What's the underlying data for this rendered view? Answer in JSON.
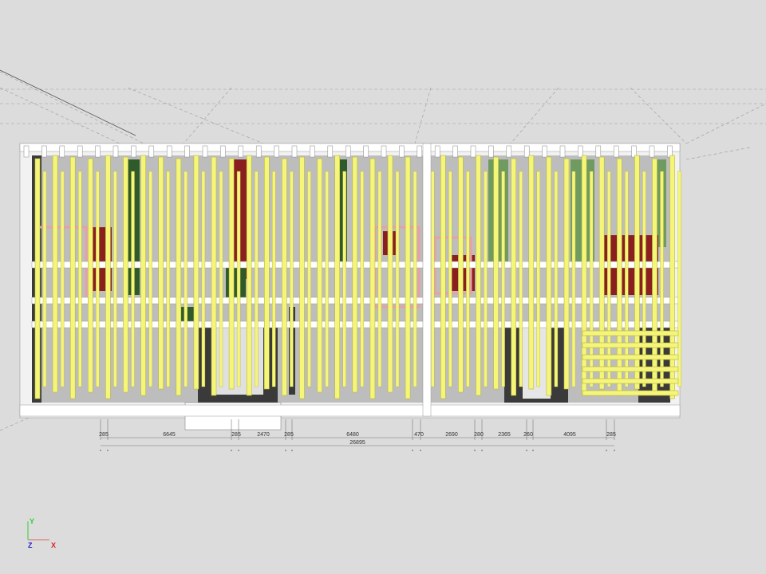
{
  "viewport": {
    "background": "#dcdcdc",
    "colors": {
      "stud": "#f5f57a",
      "stud_edge": "#b8b840",
      "beam": "#ffffff",
      "dark_wall": "#3a3a3a",
      "green_panel": "#2f5a2a",
      "light_green_panel": "#6f9a60",
      "red_panel": "#8a1f1f",
      "pink_frame": "#e6a0a8"
    }
  },
  "dimensions": {
    "segments": [
      "285",
      "6645",
      "285",
      "2470",
      "285",
      "6480",
      "470",
      "2690",
      "280",
      "2365",
      "260",
      "4095",
      "285"
    ],
    "total": "26895"
  },
  "axis_indicator": {
    "y_label": "Y",
    "z_label": "Z",
    "x_label": "X",
    "y_color": "#33cc33",
    "z_color": "#2222cc",
    "x_color": "#dd2222"
  }
}
